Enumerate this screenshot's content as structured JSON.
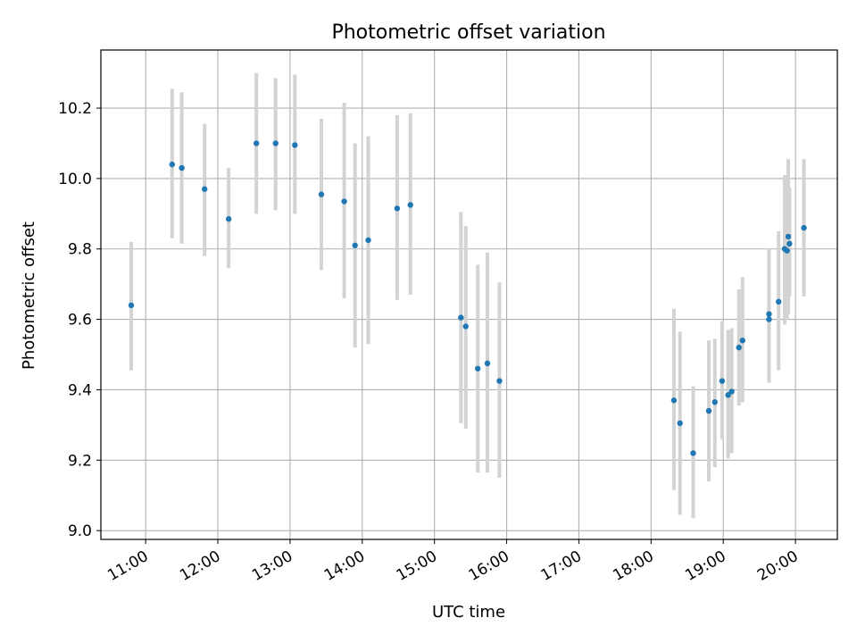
{
  "chart_data": {
    "type": "scatter",
    "title": "Photometric offset variation",
    "xlabel": "UTC time",
    "ylabel": "Photometric offset",
    "grid": true,
    "xlim_hours": [
      10.38,
      20.58
    ],
    "ylim": [
      8.975,
      10.365
    ],
    "x_ticks": [
      {
        "hour": 11,
        "label": "11:00"
      },
      {
        "hour": 12,
        "label": "12:00"
      },
      {
        "hour": 13,
        "label": "13:00"
      },
      {
        "hour": 14,
        "label": "14:00"
      },
      {
        "hour": 15,
        "label": "15:00"
      },
      {
        "hour": 16,
        "label": "16:00"
      },
      {
        "hour": 17,
        "label": "17:00"
      },
      {
        "hour": 18,
        "label": "18:00"
      },
      {
        "hour": 19,
        "label": "19:00"
      },
      {
        "hour": 20,
        "label": "20:00"
      }
    ],
    "y_ticks": [
      {
        "value": 9.0,
        "label": "9.0"
      },
      {
        "value": 9.2,
        "label": "9.2"
      },
      {
        "value": 9.4,
        "label": "9.4"
      },
      {
        "value": 9.6,
        "label": "9.6"
      },
      {
        "value": 9.8,
        "label": "9.8"
      },
      {
        "value": 10.0,
        "label": "10.0"
      },
      {
        "value": 10.2,
        "label": "10.2"
      }
    ],
    "colors": {
      "point": "#1f77b4",
      "errorbar": "#d3d3d3",
      "grid": "#b0b0b0"
    },
    "points": [
      {
        "t": "10:48",
        "y": 9.64,
        "lo": 9.455,
        "hi": 9.82
      },
      {
        "t": "11:22",
        "y": 10.04,
        "lo": 9.83,
        "hi": 10.255
      },
      {
        "t": "11:30",
        "y": 10.03,
        "lo": 9.815,
        "hi": 10.245
      },
      {
        "t": "11:49",
        "y": 9.97,
        "lo": 9.78,
        "hi": 10.155
      },
      {
        "t": "12:09",
        "y": 9.885,
        "lo": 9.745,
        "hi": 10.03
      },
      {
        "t": "12:32",
        "y": 10.1,
        "lo": 9.9,
        "hi": 10.3
      },
      {
        "t": "12:48",
        "y": 10.1,
        "lo": 9.91,
        "hi": 10.285
      },
      {
        "t": "13:04",
        "y": 10.095,
        "lo": 9.9,
        "hi": 10.295
      },
      {
        "t": "13:26",
        "y": 9.955,
        "lo": 9.74,
        "hi": 10.17
      },
      {
        "t": "13:45",
        "y": 9.935,
        "lo": 9.66,
        "hi": 10.215
      },
      {
        "t": "13:54",
        "y": 9.81,
        "lo": 9.52,
        "hi": 10.1
      },
      {
        "t": "14:05",
        "y": 9.825,
        "lo": 9.53,
        "hi": 10.12
      },
      {
        "t": "14:29",
        "y": 9.915,
        "lo": 9.655,
        "hi": 10.18
      },
      {
        "t": "14:40",
        "y": 9.925,
        "lo": 9.67,
        "hi": 10.185
      },
      {
        "t": "15:22",
        "y": 9.605,
        "lo": 9.305,
        "hi": 9.905
      },
      {
        "t": "15:26",
        "y": 9.58,
        "lo": 9.29,
        "hi": 9.865
      },
      {
        "t": "15:36",
        "y": 9.46,
        "lo": 9.165,
        "hi": 9.755
      },
      {
        "t": "15:44",
        "y": 9.475,
        "lo": 9.165,
        "hi": 9.79
      },
      {
        "t": "15:54",
        "y": 9.425,
        "lo": 9.15,
        "hi": 9.705
      },
      {
        "t": "18:19",
        "y": 9.37,
        "lo": 9.115,
        "hi": 9.63
      },
      {
        "t": "18:24",
        "y": 9.305,
        "lo": 9.045,
        "hi": 9.565
      },
      {
        "t": "18:35",
        "y": 9.22,
        "lo": 9.035,
        "hi": 9.41
      },
      {
        "t": "18:48",
        "y": 9.34,
        "lo": 9.14,
        "hi": 9.54
      },
      {
        "t": "18:53",
        "y": 9.365,
        "lo": 9.18,
        "hi": 9.545
      },
      {
        "t": "18:59",
        "y": 9.425,
        "lo": 9.26,
        "hi": 9.595
      },
      {
        "t": "19:04",
        "y": 9.385,
        "lo": 9.205,
        "hi": 9.57
      },
      {
        "t": "19:07",
        "y": 9.395,
        "lo": 9.22,
        "hi": 9.575
      },
      {
        "t": "19:13",
        "y": 9.52,
        "lo": 9.355,
        "hi": 9.685
      },
      {
        "t": "19:16",
        "y": 9.54,
        "lo": 9.365,
        "hi": 9.72
      },
      {
        "t": "19:38",
        "y": 9.615,
        "lo": 9.42,
        "hi": 9.79
      },
      {
        "t": "19:38",
        "y": 9.6,
        "lo": 9.42,
        "hi": 9.8
      },
      {
        "t": "19:46",
        "y": 9.65,
        "lo": 9.455,
        "hi": 9.85
      },
      {
        "t": "19:51",
        "y": 9.8,
        "lo": 9.585,
        "hi": 10.01
      },
      {
        "t": "19:53",
        "y": 9.795,
        "lo": 9.6,
        "hi": 9.98
      },
      {
        "t": "19:54",
        "y": 9.835,
        "lo": 9.615,
        "hi": 10.055
      },
      {
        "t": "19:55",
        "y": 9.815,
        "lo": 9.665,
        "hi": 9.975
      },
      {
        "t": "20:07",
        "y": 9.86,
        "lo": 9.665,
        "hi": 10.055
      }
    ]
  }
}
